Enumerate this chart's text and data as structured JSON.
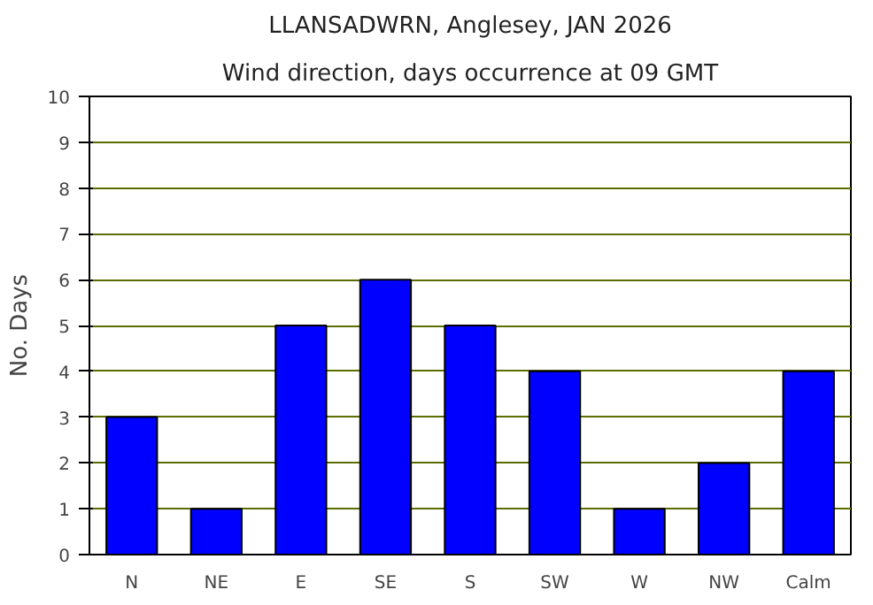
{
  "chart_data": {
    "type": "bar",
    "title": "LLANSADWRN, Anglesey, JAN 2026",
    "subtitle": "Wind direction, days occurrence at 09 GMT",
    "ylabel": "No. Days",
    "categories": [
      "N",
      "NE",
      "E",
      "SE",
      "S",
      "SW",
      "W",
      "NW",
      "Calm"
    ],
    "values": [
      3,
      1,
      5,
      6,
      5,
      4,
      1,
      2,
      4
    ],
    "color": "#0000ff",
    "ylim": [
      0,
      10
    ],
    "yticks": [
      0,
      1,
      2,
      3,
      4,
      5,
      6,
      7,
      8,
      9,
      10
    ],
    "grid": "y"
  }
}
